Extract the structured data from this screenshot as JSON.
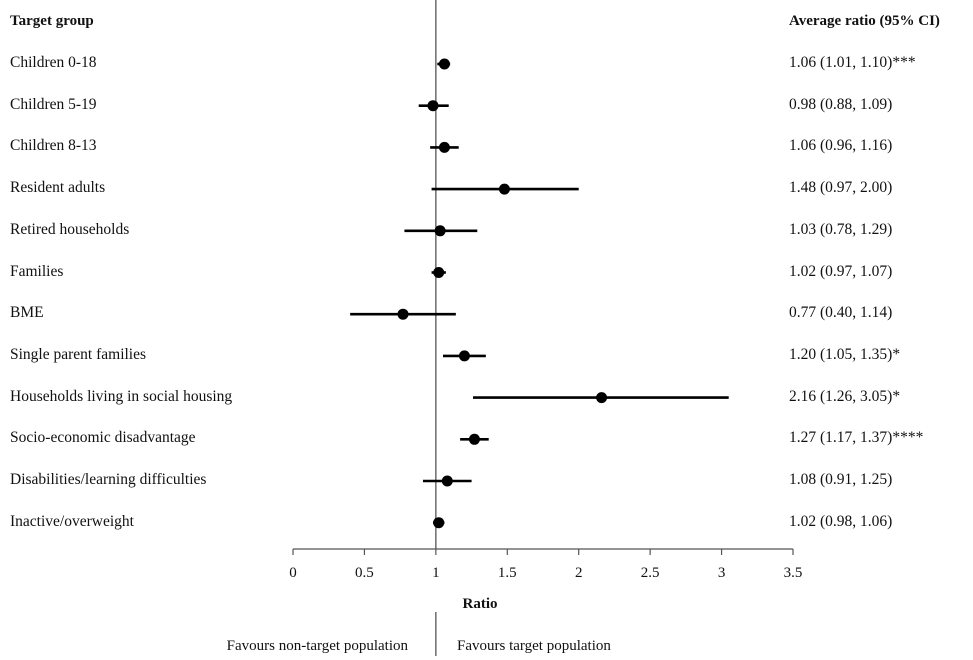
{
  "chart_data": {
    "type": "forest",
    "header_left": "Target group",
    "header_right": "Average ratio (95% CI)",
    "xlabel": "Ratio",
    "xlim": [
      0,
      3.5
    ],
    "xticks": [
      0,
      0.5,
      1,
      1.5,
      2,
      2.5,
      3,
      3.5
    ],
    "xtick_labels": [
      "0",
      "0.5",
      "1",
      "1.5",
      "2",
      "2.5",
      "3",
      "3.5"
    ],
    "reference_line": 1,
    "rows": [
      {
        "label": "Children 0-18",
        "ratio": 1.06,
        "lower": 1.01,
        "upper": 1.1,
        "text": "1.06 (1.01, 1.10)***"
      },
      {
        "label": "Children 5-19",
        "ratio": 0.98,
        "lower": 0.88,
        "upper": 1.09,
        "text": "0.98 (0.88, 1.09)"
      },
      {
        "label": "Children 8-13",
        "ratio": 1.06,
        "lower": 0.96,
        "upper": 1.16,
        "text": "1.06 (0.96, 1.16)"
      },
      {
        "label": "Resident adults",
        "ratio": 1.48,
        "lower": 0.97,
        "upper": 2.0,
        "text": "1.48 (0.97, 2.00)"
      },
      {
        "label": "Retired households",
        "ratio": 1.03,
        "lower": 0.78,
        "upper": 1.29,
        "text": "1.03 (0.78, 1.29)"
      },
      {
        "label": "Families",
        "ratio": 1.02,
        "lower": 0.97,
        "upper": 1.07,
        "text": "1.02 (0.97, 1.07)"
      },
      {
        "label": "BME",
        "ratio": 0.77,
        "lower": 0.4,
        "upper": 1.14,
        "text": "0.77 (0.40, 1.14)"
      },
      {
        "label": "Single parent families",
        "ratio": 1.2,
        "lower": 1.05,
        "upper": 1.35,
        "text": "1.20 (1.05, 1.35)*"
      },
      {
        "label": "Households living in social housing",
        "ratio": 2.16,
        "lower": 1.26,
        "upper": 3.05,
        "text": "2.16 (1.26, 3.05)*"
      },
      {
        "label": "Socio-economic disadvantage",
        "ratio": 1.27,
        "lower": 1.17,
        "upper": 1.37,
        "text": "1.27 (1.17, 1.37)****"
      },
      {
        "label": "Disabilities/learning difficulties",
        "ratio": 1.08,
        "lower": 0.91,
        "upper": 1.25,
        "text": "1.08 (0.91, 1.25)"
      },
      {
        "label": "Inactive/overweight",
        "ratio": 1.02,
        "lower": 0.98,
        "upper": 1.06,
        "text": "1.02 (0.98, 1.06)"
      }
    ],
    "favours_left": "Favours non-target population",
    "favours_right": "Favours target population",
    "colors": {
      "marks": "#000000",
      "axis": "#555555",
      "text": "#111111"
    }
  }
}
